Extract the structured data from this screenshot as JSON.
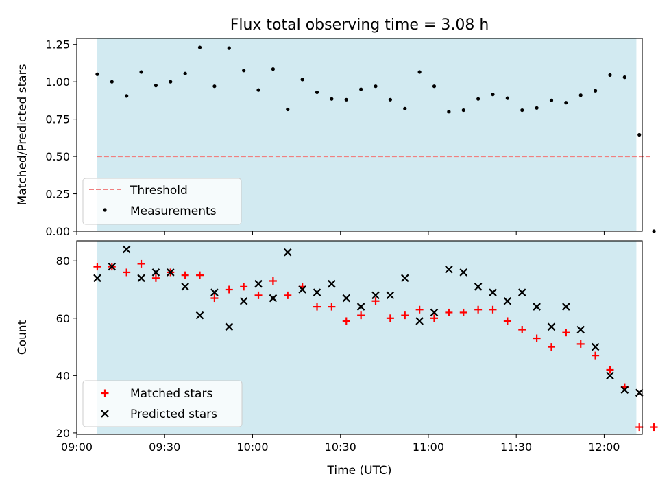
{
  "chart_data": [
    {
      "type": "scatter",
      "title": "Flux total observing time = 3.08 h",
      "xlabel": "",
      "ylabel": "Matched/Predicted stars",
      "ylim": [
        0.0,
        1.29
      ],
      "yticks": [
        "0.00",
        "0.25",
        "0.50",
        "0.75",
        "1.00",
        "1.25"
      ],
      "ytick_values": [
        0.0,
        0.25,
        0.5,
        0.75,
        1.0,
        1.25
      ],
      "xlim": [
        "09:00",
        "12:13"
      ],
      "shaded_span": [
        "09:07",
        "12:11"
      ],
      "shade_color": "#add8e6",
      "legend_position": "lower-left",
      "threshold": {
        "name": "Threshold",
        "y": 0.5,
        "x": [
          "09:07",
          "12:16"
        ],
        "color": "#f08080",
        "style": "dashed"
      },
      "series": [
        {
          "name": "Measurements",
          "color": "#000000",
          "marker": "dot",
          "x": [
            "09:07",
            "09:12",
            "09:17",
            "09:22",
            "09:27",
            "09:32",
            "09:37",
            "09:42",
            "09:47",
            "09:52",
            "09:57",
            "10:02",
            "10:07",
            "10:12",
            "10:17",
            "10:22",
            "10:27",
            "10:32",
            "10:37",
            "10:42",
            "10:47",
            "10:52",
            "10:57",
            "11:02",
            "11:07",
            "11:12",
            "11:17",
            "11:22",
            "11:27",
            "11:32",
            "11:37",
            "11:42",
            "11:47",
            "11:52",
            "11:57",
            "12:02",
            "12:07",
            "12:12",
            "12:17"
          ],
          "y": [
            1.05,
            1.0,
            0.905,
            1.065,
            0.975,
            1.0,
            1.055,
            1.23,
            0.97,
            1.225,
            1.075,
            0.945,
            1.085,
            0.815,
            1.015,
            0.93,
            0.885,
            0.88,
            0.95,
            0.97,
            0.88,
            0.82,
            1.065,
            0.97,
            0.8,
            0.81,
            0.885,
            0.915,
            0.89,
            0.81,
            0.825,
            0.875,
            0.86,
            0.91,
            0.94,
            1.045,
            1.03,
            0.645,
            0.0
          ]
        }
      ]
    },
    {
      "type": "scatter",
      "title": "",
      "xlabel": "Time (UTC)",
      "ylabel": "Count",
      "ylim": [
        19.5,
        87
      ],
      "yticks": [
        "20",
        "40",
        "60",
        "80"
      ],
      "ytick_values": [
        20,
        40,
        60,
        80
      ],
      "xticks": [
        "09:00",
        "09:30",
        "10:00",
        "10:30",
        "11:00",
        "11:30",
        "12:00"
      ],
      "xlim": [
        "09:00",
        "12:13"
      ],
      "shaded_span": [
        "09:07",
        "12:11"
      ],
      "shade_color": "#add8e6",
      "legend_position": "lower-left",
      "series": [
        {
          "name": "Matched stars",
          "color": "#ff0000",
          "marker": "plus",
          "x": [
            "09:07",
            "09:12",
            "09:17",
            "09:22",
            "09:27",
            "09:32",
            "09:37",
            "09:42",
            "09:47",
            "09:52",
            "09:57",
            "10:02",
            "10:07",
            "10:12",
            "10:17",
            "10:22",
            "10:27",
            "10:32",
            "10:37",
            "10:42",
            "10:47",
            "10:52",
            "10:57",
            "11:02",
            "11:07",
            "11:12",
            "11:17",
            "11:22",
            "11:27",
            "11:32",
            "11:37",
            "11:42",
            "11:47",
            "11:52",
            "11:57",
            "12:02",
            "12:07",
            "12:12",
            "12:17"
          ],
          "y": [
            78,
            78,
            76,
            79,
            74,
            76,
            75,
            75,
            67,
            70,
            71,
            68,
            73,
            68,
            71,
            64,
            64,
            59,
            61,
            66,
            60,
            61,
            63,
            60,
            62,
            62,
            63,
            63,
            59,
            56,
            53,
            50,
            55,
            51,
            47,
            42,
            36,
            22,
            22
          ]
        },
        {
          "name": "Predicted stars",
          "color": "#000000",
          "marker": "cross",
          "x": [
            "09:07",
            "09:12",
            "09:17",
            "09:22",
            "09:27",
            "09:32",
            "09:37",
            "09:42",
            "09:47",
            "09:52",
            "09:57",
            "10:02",
            "10:07",
            "10:12",
            "10:17",
            "10:22",
            "10:27",
            "10:32",
            "10:37",
            "10:42",
            "10:47",
            "10:52",
            "10:57",
            "11:02",
            "11:07",
            "11:12",
            "11:17",
            "11:22",
            "11:27",
            "11:32",
            "11:37",
            "11:42",
            "11:47",
            "11:52",
            "11:57",
            "12:02",
            "12:07",
            "12:12"
          ],
          "y": [
            74,
            78,
            84,
            74,
            76,
            76,
            71,
            61,
            69,
            57,
            66,
            72,
            67,
            83,
            70,
            69,
            72,
            67,
            64,
            68,
            68,
            74,
            59,
            62,
            77,
            76,
            71,
            69,
            66,
            69,
            64,
            57,
            64,
            56,
            50,
            40,
            35,
            34
          ]
        }
      ]
    }
  ]
}
